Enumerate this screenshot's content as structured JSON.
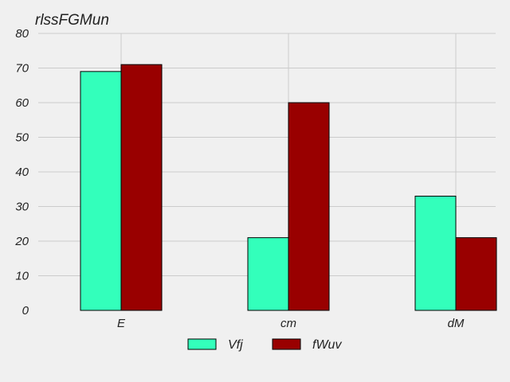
{
  "chart_data": {
    "type": "bar",
    "title": "rlssFGMun",
    "xlabel": "",
    "ylabel": "",
    "categories": [
      "E",
      "cm",
      "dM"
    ],
    "series": [
      {
        "name": "Vfj",
        "values": [
          69,
          21,
          33
        ],
        "color": "#33ffbb"
      },
      {
        "name": "fWuv",
        "values": [
          71,
          60,
          21
        ],
        "color": "#990000"
      }
    ],
    "ylim": [
      0,
      80
    ],
    "yticks": [
      0,
      10,
      20,
      30,
      40,
      50,
      60,
      70,
      80
    ],
    "grid": true,
    "legend_position": "bottom-center"
  }
}
